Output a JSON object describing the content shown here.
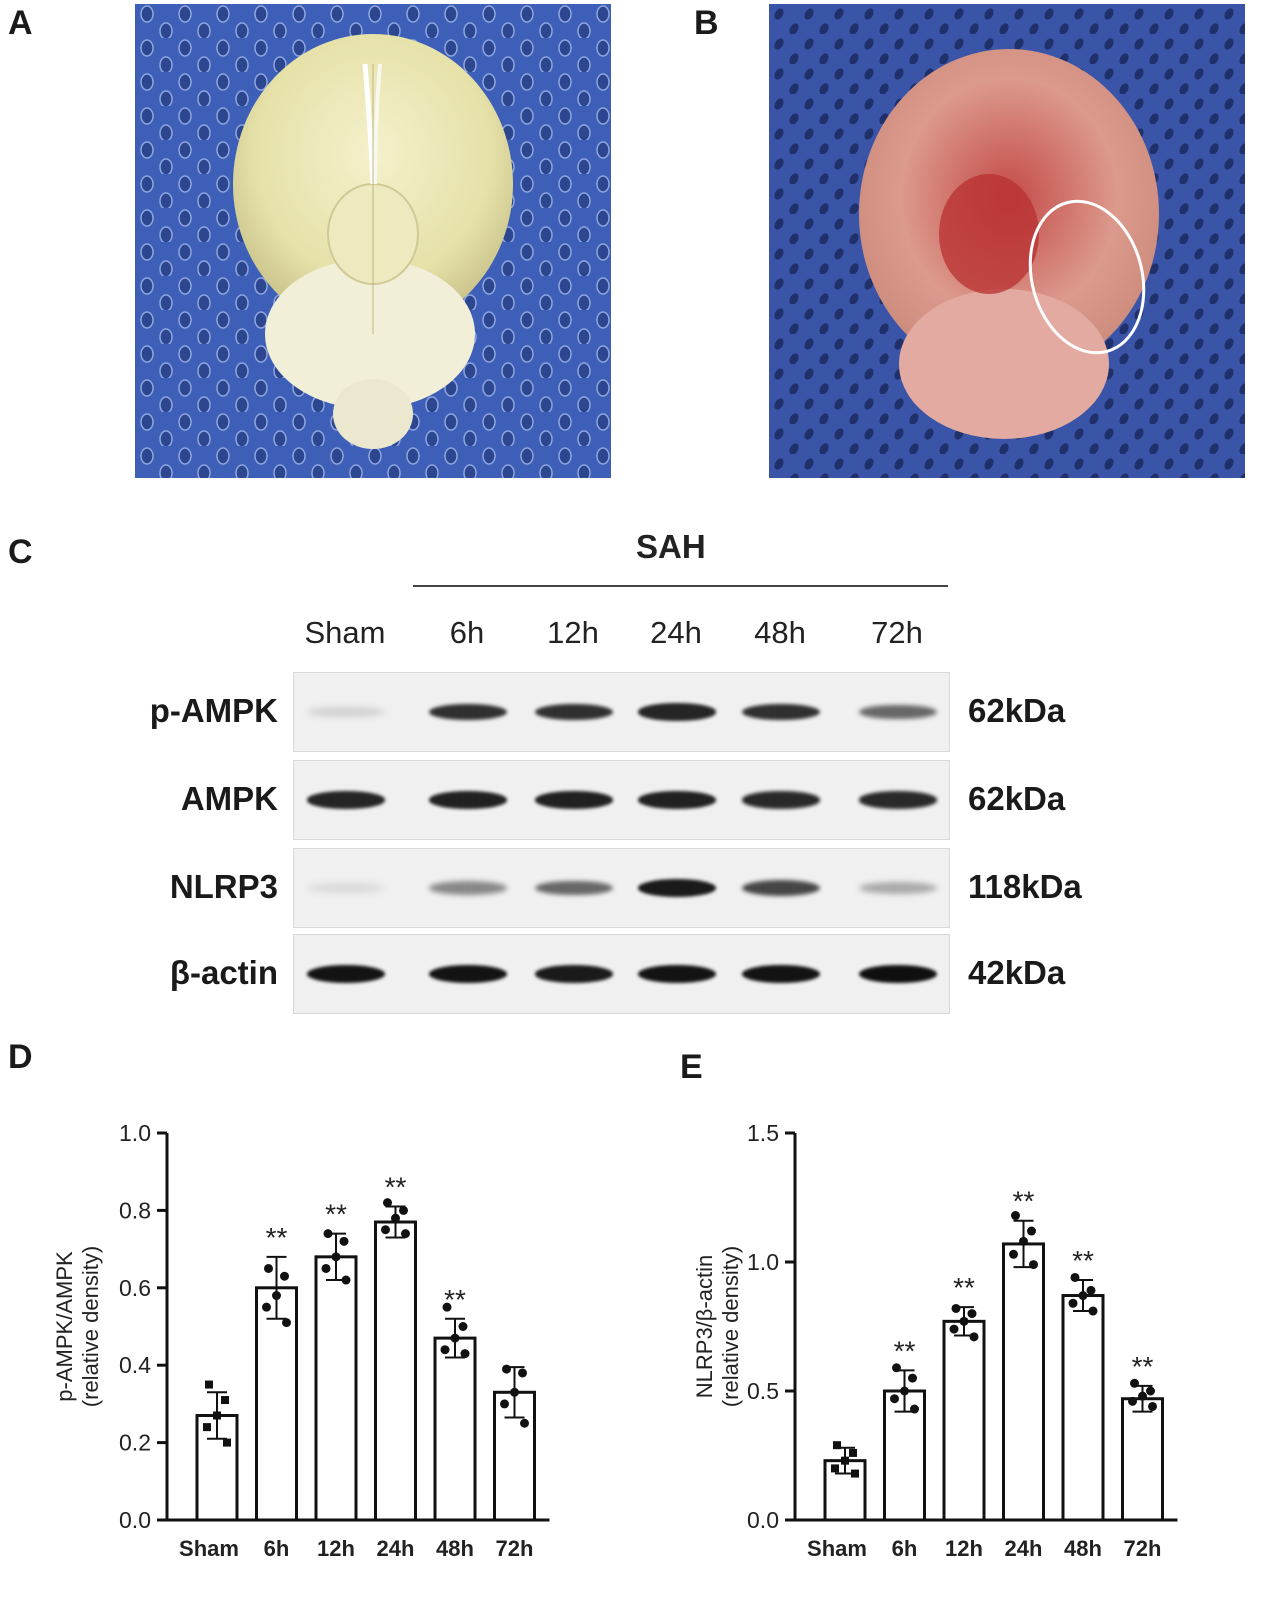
{
  "panels": {
    "a": "A",
    "b": "B",
    "c": "C",
    "d": "D",
    "e": "E"
  },
  "western_blot": {
    "group_label": "SAH",
    "lanes": [
      "Sham",
      "6h",
      "12h",
      "24h",
      "48h",
      "72h"
    ],
    "rows": [
      {
        "protein": "p-AMPK",
        "kda": "62kDa",
        "intensity": [
          0.12,
          0.85,
          0.85,
          0.9,
          0.85,
          0.6
        ]
      },
      {
        "protein": "AMPK",
        "kda": "62kDa",
        "intensity": [
          0.9,
          0.92,
          0.92,
          0.92,
          0.88,
          0.88
        ]
      },
      {
        "protein": "NLRP3",
        "kda": "118kDa",
        "intensity": [
          0.08,
          0.45,
          0.6,
          0.95,
          0.75,
          0.3
        ]
      },
      {
        "protein": "β-actin",
        "kda": "42kDa",
        "intensity": [
          0.98,
          0.98,
          0.95,
          0.98,
          0.98,
          1.0
        ]
      }
    ]
  },
  "chart_data": [
    {
      "type": "bar",
      "panel": "D",
      "categories": [
        "Sham",
        "6h",
        "12h",
        "24h",
        "48h",
        "72h"
      ],
      "values": [
        0.27,
        0.6,
        0.68,
        0.77,
        0.47,
        0.33
      ],
      "errors": [
        0.06,
        0.08,
        0.06,
        0.04,
        0.05,
        0.065
      ],
      "points": [
        [
          0.35,
          0.31,
          0.27,
          0.24,
          0.2
        ],
        [
          0.65,
          0.63,
          0.58,
          0.55,
          0.51
        ],
        [
          0.74,
          0.72,
          0.68,
          0.65,
          0.62
        ],
        [
          0.82,
          0.8,
          0.78,
          0.75,
          0.74
        ],
        [
          0.55,
          0.5,
          0.47,
          0.44,
          0.43
        ],
        [
          0.39,
          0.38,
          0.33,
          0.3,
          0.25
        ]
      ],
      "significance": [
        "",
        "**",
        "**",
        "**",
        "**",
        ""
      ],
      "ylabel": "p-AMPK/AMPK",
      "ylabel2": "(relative density)",
      "ylim": [
        0,
        1.0
      ],
      "yticks": [
        "0.0",
        "0.2",
        "0.4",
        "0.6",
        "0.8",
        "1.0"
      ]
    },
    {
      "type": "bar",
      "panel": "E",
      "categories": [
        "Sham",
        "6h",
        "12h",
        "24h",
        "48h",
        "72h"
      ],
      "values": [
        0.23,
        0.5,
        0.77,
        1.07,
        0.87,
        0.47
      ],
      "errors": [
        0.05,
        0.08,
        0.055,
        0.09,
        0.06,
        0.05
      ],
      "points": [
        [
          0.29,
          0.26,
          0.23,
          0.2,
          0.18
        ],
        [
          0.59,
          0.55,
          0.5,
          0.47,
          0.43
        ],
        [
          0.82,
          0.8,
          0.77,
          0.74,
          0.71
        ],
        [
          1.18,
          1.12,
          1.08,
          1.03,
          0.99
        ],
        [
          0.94,
          0.89,
          0.87,
          0.84,
          0.81
        ],
        [
          0.53,
          0.5,
          0.48,
          0.46,
          0.44
        ]
      ],
      "significance": [
        "",
        "**",
        "**",
        "**",
        "**",
        "**"
      ],
      "ylabel": "NLRP3/β-actin",
      "ylabel2": "(relative density)",
      "ylim": [
        0,
        1.5
      ],
      "yticks": [
        "0.0",
        "0.5",
        "1.0",
        "1.5"
      ]
    }
  ]
}
